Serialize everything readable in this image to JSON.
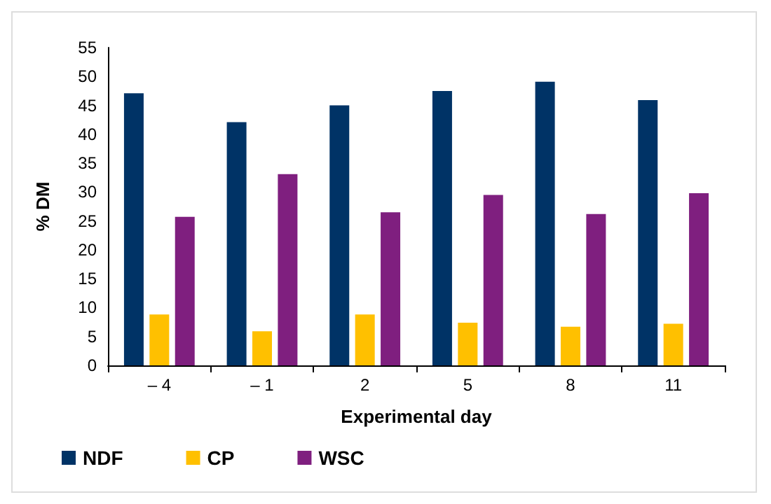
{
  "chart_data": {
    "type": "bar",
    "xlabel": "Experimental day",
    "ylabel": "% DM",
    "categories": [
      "– 4",
      "– 1",
      "2",
      "5",
      "8",
      "11"
    ],
    "series": [
      {
        "name": "NDF",
        "color": "#003366",
        "values": [
          47.1,
          42.1,
          45.0,
          47.5,
          49.1,
          45.9
        ]
      },
      {
        "name": "CP",
        "color": "#ffc000",
        "values": [
          8.8,
          5.9,
          8.8,
          7.4,
          6.7,
          7.2
        ]
      },
      {
        "name": "WSC",
        "color": "#7f1f7f",
        "values": [
          25.7,
          33.1,
          26.5,
          29.5,
          26.2,
          29.8
        ]
      }
    ],
    "ylim": [
      0,
      55
    ],
    "yticks": [
      0,
      5,
      10,
      15,
      20,
      25,
      30,
      35,
      40,
      45,
      50,
      55
    ],
    "grid": false,
    "legend": "bottom left"
  }
}
